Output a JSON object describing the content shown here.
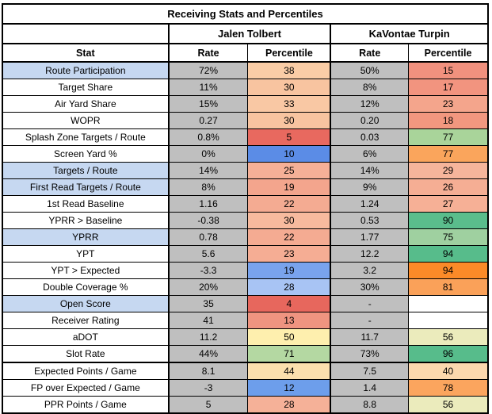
{
  "title": "Receiving Stats and Percentiles",
  "players": [
    "Jalen Tolbert",
    "KaVontae Turpin"
  ],
  "headers": {
    "stat": "Stat",
    "rate": "Rate",
    "percentile": "Percentile"
  },
  "colors": {
    "rate_cell_gray": "#BFBFBF",
    "stat_highlight_blue": "#C6D8F1",
    "low_percentile_red": "#E8695F",
    "high_percentile_green": "#57BC8B",
    "alt_low_blue": "#6D9EEB",
    "alt_high_orange": "#FB8A28",
    "border_black": "#000000"
  },
  "rows": [
    {
      "stat": "Route Participation",
      "stat_bg": "#C6D8F1",
      "cells": [
        {
          "v": "72%",
          "bg": "#BFBFBF"
        },
        {
          "v": "38",
          "bg": "#FACDA6"
        },
        {
          "v": "50%",
          "bg": "#BFBFBF"
        },
        {
          "v": "15",
          "bg": "#F1917E"
        }
      ]
    },
    {
      "stat": "Target Share",
      "stat_bg": "#FFFFFF",
      "cells": [
        {
          "v": "11%",
          "bg": "#BFBFBF"
        },
        {
          "v": "30",
          "bg": "#F8C4A0"
        },
        {
          "v": "8%",
          "bg": "#BFBFBF"
        },
        {
          "v": "17",
          "bg": "#F2947F"
        }
      ]
    },
    {
      "stat": "Air Yard Share",
      "stat_bg": "#FFFFFF",
      "cells": [
        {
          "v": "15%",
          "bg": "#BFBFBF"
        },
        {
          "v": "33",
          "bg": "#F9C8A4"
        },
        {
          "v": "12%",
          "bg": "#BFBFBF"
        },
        {
          "v": "23",
          "bg": "#F4A58C"
        }
      ]
    },
    {
      "stat": "WOPR",
      "stat_bg": "#FFFFFF",
      "cells": [
        {
          "v": "0.27",
          "bg": "#BFBFBF"
        },
        {
          "v": "30",
          "bg": "#F8C4A0"
        },
        {
          "v": "0.20",
          "bg": "#BFBFBF"
        },
        {
          "v": "18",
          "bg": "#F2977F"
        }
      ]
    },
    {
      "stat": "Splash Zone Targets / Route",
      "stat_bg": "#FFFFFF",
      "cells": [
        {
          "v": "0.8%",
          "bg": "#BFBFBF"
        },
        {
          "v": "5",
          "bg": "#E8695F"
        },
        {
          "v": "0.03",
          "bg": "#BFBFBF"
        },
        {
          "v": "77",
          "bg": "#A9D49A"
        }
      ]
    },
    {
      "stat": "Screen Yard %",
      "stat_bg": "#FFFFFF",
      "cells": [
        {
          "v": "0%",
          "bg": "#BFBFBF"
        },
        {
          "v": "10",
          "bg": "#5B8CE6"
        },
        {
          "v": "6%",
          "bg": "#BFBFBF"
        },
        {
          "v": "77",
          "bg": "#FAA55C"
        }
      ]
    },
    {
      "stat": "Targets / Route",
      "stat_bg": "#C6D8F1",
      "cells": [
        {
          "v": "14%",
          "bg": "#BFBFBF"
        },
        {
          "v": "25",
          "bg": "#F5B097"
        },
        {
          "v": "14%",
          "bg": "#BFBFBF"
        },
        {
          "v": "29",
          "bg": "#F6B59B"
        }
      ]
    },
    {
      "stat": "First Read Targets / Route",
      "stat_bg": "#C6D8F1",
      "cells": [
        {
          "v": "8%",
          "bg": "#BFBFBF"
        },
        {
          "v": "19",
          "bg": "#F3A58D"
        },
        {
          "v": "9%",
          "bg": "#BFBFBF"
        },
        {
          "v": "26",
          "bg": "#F5AE94"
        }
      ]
    },
    {
      "stat": "1st Read Baseline",
      "stat_bg": "#FFFFFF",
      "cells": [
        {
          "v": "1.16",
          "bg": "#BFBFBF"
        },
        {
          "v": "22",
          "bg": "#F4AB92"
        },
        {
          "v": "1.24",
          "bg": "#BFBFBF"
        },
        {
          "v": "27",
          "bg": "#F6B096"
        }
      ]
    },
    {
      "stat": "YPRR > Baseline",
      "stat_bg": "#FFFFFF",
      "cells": [
        {
          "v": "-0.38",
          "bg": "#BFBFBF"
        },
        {
          "v": "30",
          "bg": "#F7BA9E"
        },
        {
          "v": "0.53",
          "bg": "#BFBFBF"
        },
        {
          "v": "90",
          "bg": "#5ABD8C"
        }
      ]
    },
    {
      "stat": "YPRR",
      "stat_bg": "#C6D8F1",
      "cells": [
        {
          "v": "0.78",
          "bg": "#BFBFBF"
        },
        {
          "v": "22",
          "bg": "#F4AB92"
        },
        {
          "v": "1.77",
          "bg": "#BFBFBF"
        },
        {
          "v": "75",
          "bg": "#9FD0A0"
        }
      ]
    },
    {
      "stat": "YPT",
      "stat_bg": "#FFFFFF",
      "cells": [
        {
          "v": "5.6",
          "bg": "#BFBFBF"
        },
        {
          "v": "23",
          "bg": "#F5AD94"
        },
        {
          "v": "12.2",
          "bg": "#BFBFBF"
        },
        {
          "v": "94",
          "bg": "#57BC8B"
        }
      ]
    },
    {
      "stat": "YPT > Expected",
      "stat_bg": "#FFFFFF",
      "cells": [
        {
          "v": "-3.3",
          "bg": "#BFBFBF"
        },
        {
          "v": "19",
          "bg": "#79A3ED"
        },
        {
          "v": "3.2",
          "bg": "#BFBFBF"
        },
        {
          "v": "94",
          "bg": "#FB8A28"
        }
      ]
    },
    {
      "stat": "Double Coverage %",
      "stat_bg": "#FFFFFF",
      "cells": [
        {
          "v": "20%",
          "bg": "#BFBFBF"
        },
        {
          "v": "28",
          "bg": "#A8C4F4"
        },
        {
          "v": "30%",
          "bg": "#BFBFBF"
        },
        {
          "v": "81",
          "bg": "#FAA159"
        }
      ]
    },
    {
      "stat": "Open Score",
      "stat_bg": "#C6D8F1",
      "cells": [
        {
          "v": "35",
          "bg": "#BFBFBF"
        },
        {
          "v": "4",
          "bg": "#E7675D"
        },
        {
          "v": "-",
          "bg": "#BFBFBF"
        },
        {
          "v": "",
          "bg": "#FFFFFF"
        }
      ]
    },
    {
      "stat": "Receiver Rating",
      "stat_bg": "#FFFFFF",
      "cells": [
        {
          "v": "41",
          "bg": "#BFBFBF"
        },
        {
          "v": "13",
          "bg": "#EF9480"
        },
        {
          "v": "-",
          "bg": "#BFBFBF"
        },
        {
          "v": "",
          "bg": "#FFFFFF"
        }
      ]
    },
    {
      "stat": "aDOT",
      "stat_bg": "#FFFFFF",
      "cells": [
        {
          "v": "11.2",
          "bg": "#BFBFBF"
        },
        {
          "v": "50",
          "bg": "#FEEFAE"
        },
        {
          "v": "11.7",
          "bg": "#BFBFBF"
        },
        {
          "v": "56",
          "bg": "#EBEBBC"
        }
      ]
    },
    {
      "stat": "Slot Rate",
      "stat_bg": "#FFFFFF",
      "cells": [
        {
          "v": "44%",
          "bg": "#BFBFBF"
        },
        {
          "v": "71",
          "bg": "#B4D8A2"
        },
        {
          "v": "73%",
          "bg": "#BFBFBF"
        },
        {
          "v": "96",
          "bg": "#57BC8B"
        }
      ]
    },
    {
      "stat": "Expected Points / Game",
      "stat_bg": "#FFFFFF",
      "thick_top": true,
      "cells": [
        {
          "v": "8.1",
          "bg": "#BFBFBF"
        },
        {
          "v": "44",
          "bg": "#FBDFAE"
        },
        {
          "v": "7.5",
          "bg": "#BFBFBF"
        },
        {
          "v": "40",
          "bg": "#FCD8AE"
        }
      ]
    },
    {
      "stat": "FP over Expected / Game",
      "stat_bg": "#FFFFFF",
      "cells": [
        {
          "v": "-3",
          "bg": "#BFBFBF"
        },
        {
          "v": "12",
          "bg": "#6D9EEB"
        },
        {
          "v": "1.4",
          "bg": "#BFBFBF"
        },
        {
          "v": "78",
          "bg": "#FBA55E"
        }
      ]
    },
    {
      "stat": "PPR Points / Game",
      "stat_bg": "#FFFFFF",
      "cells": [
        {
          "v": "5",
          "bg": "#BFBFBF"
        },
        {
          "v": "28",
          "bg": "#F5B198"
        },
        {
          "v": "8.8",
          "bg": "#BFBFBF"
        },
        {
          "v": "56",
          "bg": "#EBEBBC"
        }
      ]
    }
  ],
  "chart_data": {
    "type": "table",
    "title": "Receiving Stats and Percentiles",
    "columns": [
      "Stat",
      "Jalen Tolbert Rate",
      "Jalen Tolbert Percentile",
      "KaVontae Turpin Rate",
      "KaVontae Turpin Percentile"
    ],
    "rows": [
      [
        "Route Participation",
        "72%",
        38,
        "50%",
        15
      ],
      [
        "Target Share",
        "11%",
        30,
        "8%",
        17
      ],
      [
        "Air Yard Share",
        "15%",
        33,
        "12%",
        23
      ],
      [
        "WOPR",
        "0.27",
        30,
        "0.20",
        18
      ],
      [
        "Splash Zone Targets / Route",
        "0.8%",
        5,
        "0.03",
        77
      ],
      [
        "Screen Yard %",
        "0%",
        10,
        "6%",
        77
      ],
      [
        "Targets / Route",
        "14%",
        25,
        "14%",
        29
      ],
      [
        "First Read Targets / Route",
        "8%",
        19,
        "9%",
        26
      ],
      [
        "1st Read Baseline",
        "1.16",
        22,
        "1.24",
        27
      ],
      [
        "YPRR > Baseline",
        "-0.38",
        30,
        "0.53",
        90
      ],
      [
        "YPRR",
        "0.78",
        22,
        "1.77",
        75
      ],
      [
        "YPT",
        "5.6",
        23,
        "12.2",
        94
      ],
      [
        "YPT > Expected",
        "-3.3",
        19,
        "3.2",
        94
      ],
      [
        "Double Coverage %",
        "20%",
        28,
        "30%",
        81
      ],
      [
        "Open Score",
        "35",
        4,
        "-",
        null
      ],
      [
        "Receiver Rating",
        "41",
        13,
        "-",
        null
      ],
      [
        "aDOT",
        "11.2",
        50,
        "11.7",
        56
      ],
      [
        "Slot Rate",
        "44%",
        71,
        "73%",
        96
      ],
      [
        "Expected Points / Game",
        "8.1",
        44,
        "7.5",
        40
      ],
      [
        "FP over Expected / Game",
        "-3",
        12,
        "1.4",
        78
      ],
      [
        "PPR Points / Game",
        "5",
        28,
        "8.8",
        56
      ]
    ]
  }
}
